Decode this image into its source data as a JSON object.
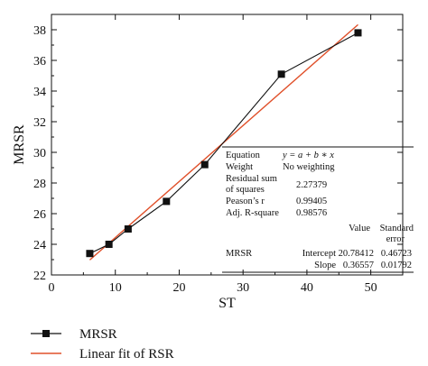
{
  "chart_data": {
    "type": "scatter",
    "xlabel": "ST",
    "ylabel": "MRSR",
    "xlim": [
      0,
      55
    ],
    "ylim": [
      22,
      39
    ],
    "x_ticks": [
      0,
      10,
      20,
      30,
      40,
      50
    ],
    "y_ticks": [
      22,
      24,
      26,
      28,
      30,
      32,
      34,
      36,
      38
    ],
    "series": [
      {
        "name": "MRSR",
        "marker": "square",
        "line": "connected",
        "color": "#111111",
        "x": [
          6,
          9,
          12,
          18,
          24,
          36,
          48
        ],
        "y": [
          23.4,
          24.0,
          25.0,
          26.8,
          29.2,
          35.1,
          37.8
        ]
      }
    ],
    "fit": {
      "name": "Linear fit of RSR",
      "color": "#e0502a",
      "intercept": 20.78412,
      "slope": 0.36557,
      "x_range": [
        6,
        48
      ]
    },
    "legend_placement": "bottom-left",
    "grid": false,
    "stats_table": {
      "equation_label": "Equation",
      "equation_value": "y = a + b ∗ x",
      "weight_label": "Weight",
      "weight_value": "No weighting",
      "rss_label_1": "Residual sum",
      "rss_label_2": "of squares",
      "rss_value": "2.27379",
      "pearson_label": "Peason’s r",
      "pearson_value": "0.99405",
      "adjr_label": "Adj. R-square",
      "adjr_value": "0.98576",
      "col_value": "Value",
      "col_stderr_1": "Standard",
      "col_stderr_2": "error",
      "row_name": "MRSR",
      "intercept_label": "Intercept",
      "intercept_value": "20.78412",
      "intercept_err": "0.46723",
      "slope_label": "Slope",
      "slope_value": "0.36557",
      "slope_err": "0.01792"
    }
  }
}
